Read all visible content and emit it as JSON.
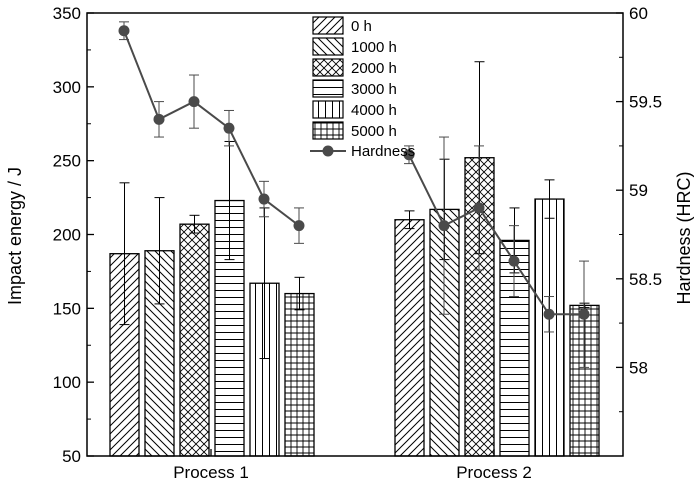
{
  "chart_data": {
    "type": "bar",
    "categories": [
      "Process 1",
      "Process 2"
    ],
    "xlabel": "",
    "ylabel": "Impact energy / J",
    "ylabel_right": "Hardness (HRC)",
    "ylim": [
      50,
      350
    ],
    "ylim_right": [
      57.5,
      60
    ],
    "yticks": [
      "50",
      "100",
      "150",
      "200",
      "250",
      "300",
      "350"
    ],
    "yticks_right": [
      "58",
      "58.5",
      "59",
      "59.5",
      "60"
    ],
    "legend_position": "top-center",
    "series": [
      {
        "name": "0 h",
        "pattern": "diag-up",
        "values": [
          187,
          210
        ],
        "errors": [
          48,
          6
        ]
      },
      {
        "name": "1000 h",
        "pattern": "diag-down",
        "values": [
          189,
          217
        ],
        "errors": [
          36,
          34
        ]
      },
      {
        "name": "2000 h",
        "pattern": "crosshatch",
        "values": [
          207,
          252
        ],
        "errors": [
          6,
          65
        ]
      },
      {
        "name": "3000 h",
        "pattern": "horizontal",
        "values": [
          223,
          196
        ],
        "errors": [
          40,
          22
        ]
      },
      {
        "name": "4000 h",
        "pattern": "vertical",
        "values": [
          167,
          224
        ],
        "errors": [
          51,
          13
        ]
      },
      {
        "name": "5000 h",
        "pattern": "grid",
        "values": [
          160,
          152
        ],
        "errors": [
          11,
          1.5
        ]
      }
    ],
    "hardness": {
      "name": "Hardness",
      "groups": [
        {
          "values": [
            59.9,
            59.4,
            59.5,
            59.35,
            58.95,
            58.8
          ],
          "errors": [
            0.05,
            0.1,
            0.15,
            0.1,
            0.1,
            0.1
          ]
        },
        {
          "values": [
            59.2,
            58.8,
            58.9,
            58.6,
            58.3,
            58.3
          ],
          "errors": [
            0.05,
            0.5,
            0.35,
            0.2,
            0.1,
            0.3
          ]
        }
      ]
    }
  }
}
